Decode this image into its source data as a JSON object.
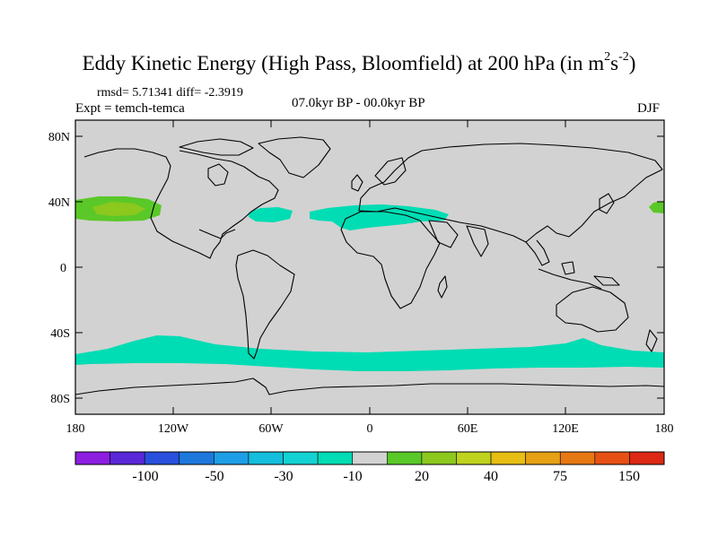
{
  "title": {
    "main": "Eddy Kinetic Energy (High Pass, Bloomfield) at 200 hPa (in m",
    "sup1": "2",
    "s": "s",
    "sup2": "-2",
    "close": ")"
  },
  "stats": "rmsd= 5.71341  diff= -2.3919",
  "experiment": "Expt = temch-temca",
  "period": "07.0kyr BP - 00.0kyr BP",
  "season": "DJF",
  "axes": {
    "lat_labels": [
      "80N",
      "40N",
      "0",
      "40S",
      "80S"
    ],
    "lon_labels": [
      "180",
      "120W",
      "60W",
      "0",
      "60E",
      "120E",
      "180"
    ]
  },
  "colorbar": {
    "colors": [
      "#8c1ee0",
      "#5a28d8",
      "#2850dc",
      "#1e78dc",
      "#1e9ee6",
      "#14bedc",
      "#14d2d2",
      "#00dcb4",
      "#d2d2d2",
      "#5ac828",
      "#8cc81e",
      "#bed21e",
      "#e6be14",
      "#e6a014",
      "#e67814",
      "#e65014",
      "#dc2814"
    ],
    "labels": [
      "-100",
      "-50",
      "-30",
      "-10",
      "20",
      "40",
      "75",
      "150"
    ]
  },
  "chart_data": {
    "type": "heatmap",
    "title": "Eddy Kinetic Energy (High Pass, Bloomfield) at 200 hPa (in m2s-2)",
    "projection": "cylindrical equidistant",
    "lon_range": [
      -180,
      180
    ],
    "lat_range": [
      -90,
      90
    ],
    "contour_levels": [
      -150,
      -100,
      -75,
      -50,
      -40,
      -30,
      -20,
      -10,
      10,
      20,
      30,
      40,
      50,
      75,
      100,
      150
    ],
    "features": [
      {
        "region": "North Pacific ~30-45N, 180-130W",
        "band": "20 to 30",
        "color": "#5ac828"
      },
      {
        "region": "North Pacific core ~35-40N, 170-145W",
        "band": "30 to 40",
        "color": "#8cc81e"
      },
      {
        "region": "North Atlantic ~30-40N, 70-40W",
        "band": "-20 to -10",
        "color": "#00dcb4"
      },
      {
        "region": "Atlantic / North Africa ~20-40N, 35W-50E",
        "band": "-20 to -10",
        "color": "#00dcb4"
      },
      {
        "region": "Southern Ocean ~40-65S, all longitudes",
        "band": "-20 to -10",
        "color": "#00dcb4"
      },
      {
        "region": "Dateline ~40N, 175-180E",
        "band": "20 to 30",
        "color": "#5ac828"
      }
    ]
  }
}
